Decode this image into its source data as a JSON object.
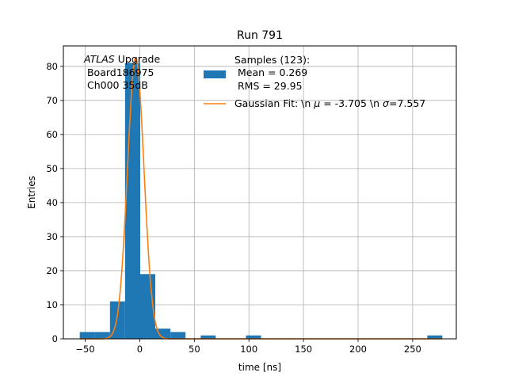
{
  "chart_data": {
    "type": "bar",
    "title": "Run 791",
    "xlabel": "time [ns]",
    "ylabel": "Entries",
    "xlim": [
      -70,
      290
    ],
    "ylim": [
      0,
      86
    ],
    "grid": true,
    "x_ticks": [
      -50,
      0,
      50,
      100,
      150,
      200,
      250
    ],
    "y_ticks": [
      0,
      10,
      20,
      30,
      40,
      50,
      60,
      70,
      80
    ],
    "x_tick_labels": [
      "−50",
      "0",
      "50",
      "100",
      "150",
      "200",
      "250"
    ],
    "y_tick_labels": [
      "0",
      "10",
      "20",
      "30",
      "40",
      "50",
      "60",
      "70",
      "80"
    ],
    "annotation": {
      "atlas": "ATLAS",
      "upgrade": " Upgrade",
      "line2": " Board186975",
      "line3": " Ch000 35dB"
    },
    "legend": {
      "position": "upper right",
      "hist_label_line1": "Samples (123):",
      "hist_label_line2": " Mean = 0.269",
      "hist_label_line3": " RMS = 29.95",
      "fit_label_prefix": "Gaussian Fit: \\n ",
      "fit_mu_symbol": "μ",
      "fit_mu_value": " = -3.705 \\n ",
      "fit_sigma_symbol": "σ",
      "fit_sigma_value": "=7.557"
    },
    "series": [
      {
        "kind": "histogram",
        "color": "#1f77b4",
        "bins": [
          {
            "x0": -55.0,
            "x1": -41.2,
            "count": 2
          },
          {
            "x0": -41.2,
            "x1": -27.3,
            "count": 2
          },
          {
            "x0": -27.3,
            "x1": -13.5,
            "count": 11
          },
          {
            "x0": -13.5,
            "x1": 0.4,
            "count": 81
          },
          {
            "x0": 0.4,
            "x1": 14.2,
            "count": 19
          },
          {
            "x0": 14.2,
            "x1": 28.1,
            "count": 3
          },
          {
            "x0": 28.1,
            "x1": 41.9,
            "count": 2
          },
          {
            "x0": 55.8,
            "x1": 69.6,
            "count": 1
          },
          {
            "x0": 97.3,
            "x1": 111.1,
            "count": 1
          },
          {
            "x0": 263.4,
            "x1": 277.2,
            "count": 1
          }
        ]
      },
      {
        "kind": "gaussian-fit",
        "color": "#ff7f0e",
        "amplitude": 82.5,
        "mu": -3.705,
        "sigma": 7.557,
        "x_range": [
          -55,
          277
        ]
      }
    ]
  }
}
